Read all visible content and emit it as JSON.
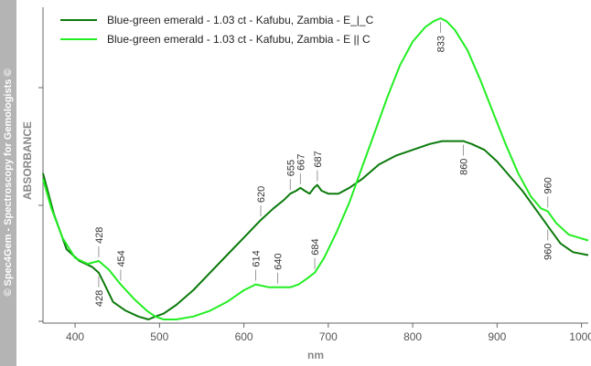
{
  "watermark": "© Spec4Gem - Spectroscopy for Gemologists ©",
  "chart_data": {
    "type": "line",
    "xlabel": "nm",
    "ylabel": "ABSORBANCE",
    "xlim": [
      362,
      1008
    ],
    "xticks": [
      400,
      500,
      600,
      700,
      800,
      900,
      1000
    ],
    "grid": false,
    "legend_position": "top-left",
    "series": [
      {
        "name": "Blue-green emerald - 1.03 ct - Kafubu, Zambia - E_|_C",
        "color": "#0b7a0b",
        "points": [
          [
            362,
            0.5
          ],
          [
            375,
            0.36
          ],
          [
            390,
            0.24
          ],
          [
            405,
            0.2
          ],
          [
            420,
            0.18
          ],
          [
            428,
            0.16
          ],
          [
            435,
            0.12
          ],
          [
            445,
            0.06
          ],
          [
            460,
            0.03
          ],
          [
            475,
            0.01
          ],
          [
            487,
            0.0
          ],
          [
            495,
            0.01
          ],
          [
            505,
            0.02
          ],
          [
            520,
            0.05
          ],
          [
            540,
            0.1
          ],
          [
            560,
            0.16
          ],
          [
            580,
            0.22
          ],
          [
            600,
            0.28
          ],
          [
            620,
            0.34
          ],
          [
            635,
            0.38
          ],
          [
            648,
            0.41
          ],
          [
            655,
            0.43
          ],
          [
            662,
            0.44
          ],
          [
            667,
            0.45
          ],
          [
            672,
            0.44
          ],
          [
            678,
            0.43
          ],
          [
            683,
            0.45
          ],
          [
            687,
            0.46
          ],
          [
            692,
            0.44
          ],
          [
            700,
            0.43
          ],
          [
            712,
            0.43
          ],
          [
            725,
            0.45
          ],
          [
            740,
            0.48
          ],
          [
            760,
            0.53
          ],
          [
            780,
            0.56
          ],
          [
            800,
            0.58
          ],
          [
            820,
            0.6
          ],
          [
            835,
            0.61
          ],
          [
            850,
            0.61
          ],
          [
            860,
            0.61
          ],
          [
            870,
            0.6
          ],
          [
            885,
            0.58
          ],
          [
            900,
            0.54
          ],
          [
            915,
            0.49
          ],
          [
            930,
            0.44
          ],
          [
            945,
            0.38
          ],
          [
            955,
            0.34
          ],
          [
            965,
            0.3
          ],
          [
            975,
            0.26
          ],
          [
            990,
            0.23
          ],
          [
            1008,
            0.22
          ]
        ]
      },
      {
        "name": "Blue-green emerald - 1.03 ct - Kafubu, Zambia - E || C",
        "color": "#22ee22",
        "points": [
          [
            362,
            0.48
          ],
          [
            372,
            0.38
          ],
          [
            385,
            0.28
          ],
          [
            400,
            0.21
          ],
          [
            415,
            0.19
          ],
          [
            428,
            0.2
          ],
          [
            440,
            0.17
          ],
          [
            454,
            0.12
          ],
          [
            470,
            0.07
          ],
          [
            485,
            0.03
          ],
          [
            495,
            0.01
          ],
          [
            505,
            0.0
          ],
          [
            520,
            0.0
          ],
          [
            540,
            0.01
          ],
          [
            560,
            0.03
          ],
          [
            580,
            0.06
          ],
          [
            600,
            0.1
          ],
          [
            614,
            0.12
          ],
          [
            630,
            0.11
          ],
          [
            640,
            0.11
          ],
          [
            655,
            0.11
          ],
          [
            665,
            0.12
          ],
          [
            675,
            0.14
          ],
          [
            684,
            0.16
          ],
          [
            695,
            0.21
          ],
          [
            710,
            0.3
          ],
          [
            725,
            0.4
          ],
          [
            740,
            0.52
          ],
          [
            755,
            0.64
          ],
          [
            770,
            0.76
          ],
          [
            785,
            0.87
          ],
          [
            800,
            0.95
          ],
          [
            815,
            1.0
          ],
          [
            825,
            1.02
          ],
          [
            833,
            1.03
          ],
          [
            840,
            1.02
          ],
          [
            850,
            0.99
          ],
          [
            865,
            0.92
          ],
          [
            880,
            0.82
          ],
          [
            895,
            0.71
          ],
          [
            910,
            0.6
          ],
          [
            925,
            0.5
          ],
          [
            940,
            0.42
          ],
          [
            952,
            0.38
          ],
          [
            960,
            0.37
          ],
          [
            970,
            0.33
          ],
          [
            985,
            0.29
          ],
          [
            1008,
            0.27
          ]
        ]
      }
    ],
    "annotations": [
      {
        "x": 428,
        "label": "428",
        "series": 1,
        "side": "above"
      },
      {
        "x": 454,
        "label": "454",
        "series": 1,
        "side": "above"
      },
      {
        "x": 428,
        "label": "428",
        "series": 0,
        "side": "below"
      },
      {
        "x": 620,
        "label": "620",
        "series": 0,
        "side": "above"
      },
      {
        "x": 655,
        "label": "655",
        "series": 0,
        "side": "above"
      },
      {
        "x": 667,
        "label": "667",
        "series": 0,
        "side": "above"
      },
      {
        "x": 687,
        "label": "687",
        "series": 0,
        "side": "above"
      },
      {
        "x": 614,
        "label": "614",
        "series": 1,
        "side": "above"
      },
      {
        "x": 640,
        "label": "640",
        "series": 1,
        "side": "above"
      },
      {
        "x": 684,
        "label": "684",
        "series": 1,
        "side": "above"
      },
      {
        "x": 833,
        "label": "833",
        "series": 1,
        "side": "below"
      },
      {
        "x": 860,
        "label": "860",
        "series": 0,
        "side": "below"
      },
      {
        "x": 960,
        "label": "960",
        "series": 1,
        "side": "above"
      },
      {
        "x": 960,
        "label": "960",
        "series": 0,
        "side": "below"
      }
    ]
  }
}
